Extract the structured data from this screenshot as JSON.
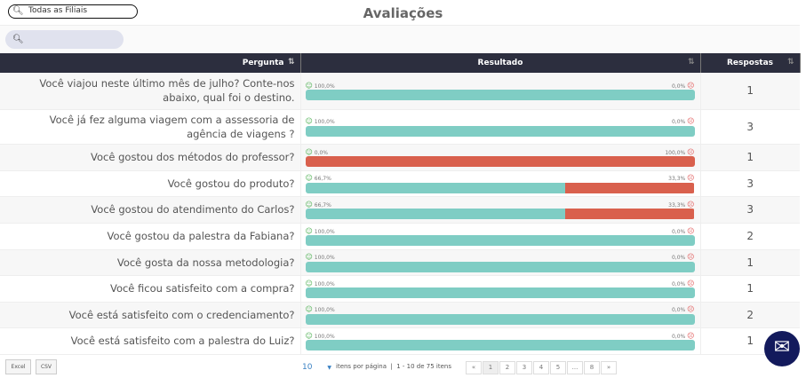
{
  "filter": {
    "value": "Todas as Filiais"
  },
  "title": "Avaliações",
  "search": {
    "placeholder": ""
  },
  "columns": [
    "Pergunta",
    "Resultado",
    "Respostas"
  ],
  "rows": [
    {
      "q": "Você viajou neste último mês de julho? Conte-nos abaixo, qual foi o destino.",
      "pos": "100,0%",
      "neg": "0,0%",
      "p": 100,
      "n": "1"
    },
    {
      "q": "Você já fez alguma viagem com a assessoria de agência de viagens ?",
      "pos": "100,0%",
      "neg": "0,0%",
      "p": 100,
      "n": "3"
    },
    {
      "q": "Você gostou dos métodos do professor?",
      "pos": "0,0%",
      "neg": "100,0%",
      "p": 0,
      "n": "1"
    },
    {
      "q": "Você gostou do produto?",
      "pos": "66,7%",
      "neg": "33,3%",
      "p": 66.7,
      "n": "3"
    },
    {
      "q": "Você gostou do atendimento do Carlos?",
      "pos": "66,7%",
      "neg": "33,3%",
      "p": 66.7,
      "n": "3"
    },
    {
      "q": "Você gostou da palestra da Fabiana?",
      "pos": "100,0%",
      "neg": "0,0%",
      "p": 100,
      "n": "2"
    },
    {
      "q": "Você gosta da nossa metodologia?",
      "pos": "100,0%",
      "neg": "0,0%",
      "p": 100,
      "n": "1"
    },
    {
      "q": "Você ficou satisfeito com a compra?",
      "pos": "100,0%",
      "neg": "0,0%",
      "p": 100,
      "n": "1"
    },
    {
      "q": "Você está satisfeito com o credenciamento?",
      "pos": "100,0%",
      "neg": "0,0%",
      "p": 100,
      "n": "2"
    },
    {
      "q": "Você está satisfeito com a palestra do Luiz?",
      "pos": "100,0%",
      "neg": "0,0%",
      "p": 100,
      "n": "1"
    }
  ],
  "footer": {
    "excel": "Excel",
    "csv": "CSV",
    "page_size": "10",
    "per_page": "itens por página",
    "range": "1 - 10 de 75 itens",
    "pages": [
      "«",
      "1",
      "2",
      "3",
      "4",
      "5",
      "...",
      "8",
      "»"
    ]
  }
}
